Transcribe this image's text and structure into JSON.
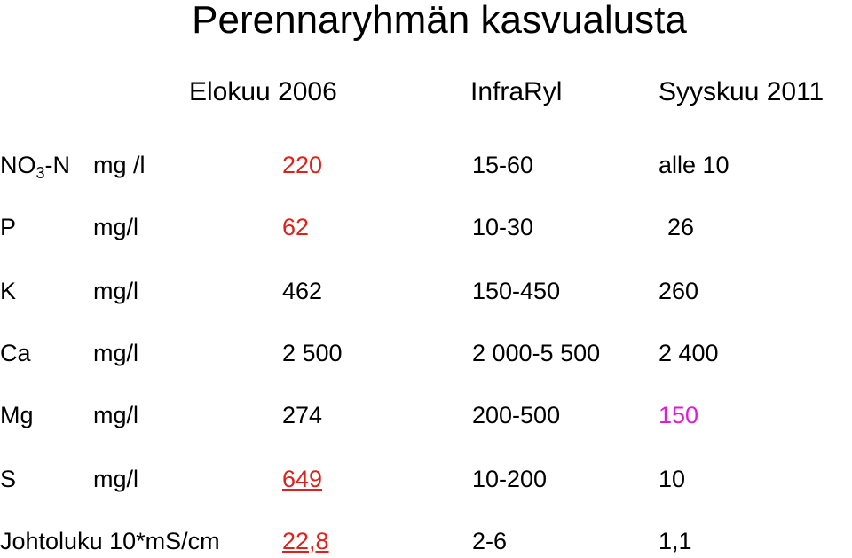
{
  "header": {
    "title": "Perennaryhmän kasvualusta"
  },
  "table": {
    "columns": [
      "Elokuu 2006",
      "InfraRyl",
      "Syyskuu 2011"
    ],
    "rows": [
      {
        "label": {
          "text": "NO",
          "sub": "3",
          "after": "-N"
        },
        "unit": "mg /l",
        "cells": [
          "220",
          "15-60",
          "alle 10"
        ]
      },
      {
        "label": "P",
        "unit": "mg/l",
        "cells": [
          "62",
          "10-30",
          "26"
        ]
      },
      {
        "label": "K",
        "unit": "mg/l",
        "cells": [
          "462",
          "150-450",
          "260"
        ]
      },
      {
        "label": "Ca",
        "unit": "mg/l",
        "cells": [
          "2 500",
          "2 000-5 500",
          "2 400"
        ]
      },
      {
        "label": "Mg",
        "unit": "mg/l",
        "cells": [
          "274",
          "200-500",
          "150"
        ]
      },
      {
        "label": "S",
        "unit": "mg/l",
        "cells": [
          "649",
          "10-200",
          "10"
        ]
      },
      {
        "label": "Johtoluku 10*mS/cm",
        "cells": [
          "22,8",
          "2-6",
          "1,1"
        ]
      }
    ]
  }
}
